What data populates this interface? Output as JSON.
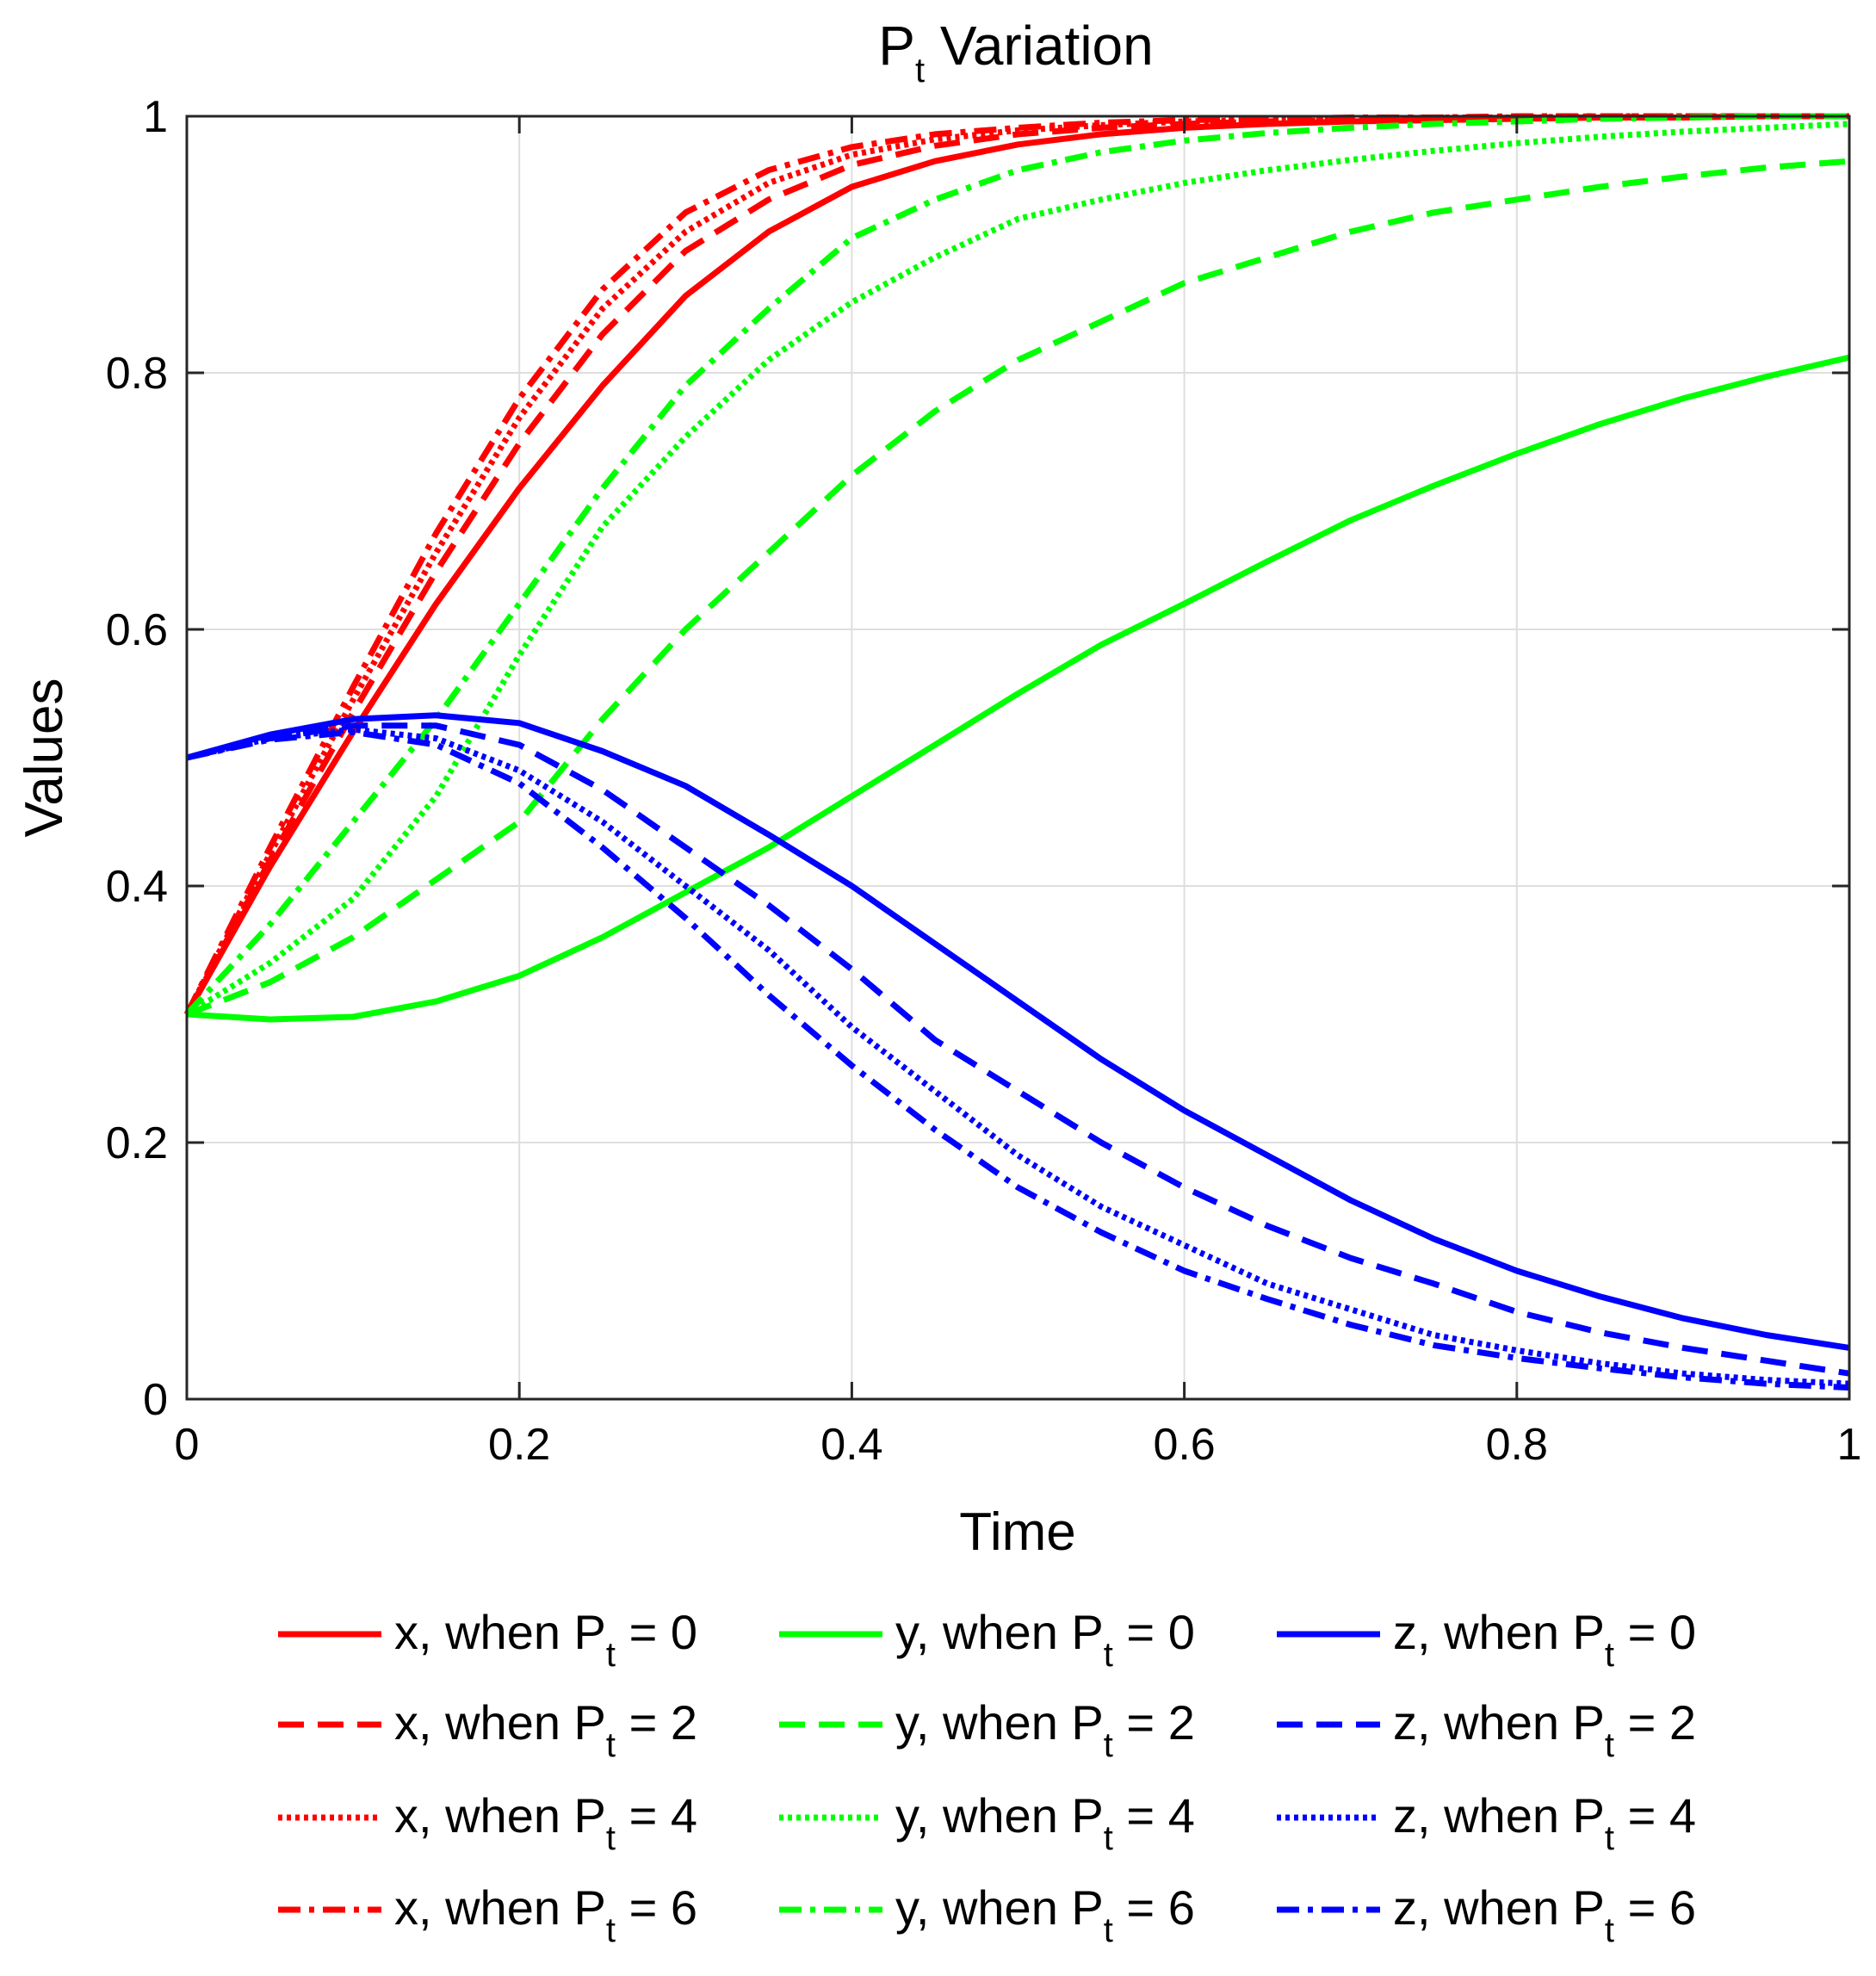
{
  "chart_data": {
    "type": "line",
    "title": "P",
    "title_sub": "t",
    "title_suffix": " Variation",
    "xlabel": "Time",
    "ylabel": "Values",
    "xlim": [
      0,
      1
    ],
    "ylim": [
      0,
      1
    ],
    "grid": true,
    "x_ticks": [
      0,
      0.2,
      0.4,
      0.6,
      0.8,
      1
    ],
    "y_ticks": [
      0,
      0.2,
      0.4,
      0.6,
      0.8,
      1
    ],
    "x_tick_labels": [
      "0",
      "0.2",
      "0.4",
      "0.6",
      "0.8",
      "1"
    ],
    "y_tick_labels": [
      "0",
      "0.2",
      "0.4",
      "0.6",
      "0.8",
      "1"
    ],
    "legend_position": "bottom, outside plot, 3 columns",
    "colors": {
      "x": "#ff0000",
      "y": "#00ff00",
      "z": "#0000ff"
    },
    "x": [
      0,
      0.05,
      0.1,
      0.15,
      0.2,
      0.25,
      0.3,
      0.35,
      0.4,
      0.45,
      0.5,
      0.55,
      0.6,
      0.65,
      0.7,
      0.75,
      0.8,
      0.85,
      0.9,
      0.95,
      1.0
    ],
    "series": [
      {
        "name": "x, when P",
        "sub": "t",
        "suffix": " = 0",
        "var": "x",
        "style": "solid",
        "values": [
          0.3,
          0.415,
          0.52,
          0.62,
          0.71,
          0.79,
          0.86,
          0.91,
          0.945,
          0.965,
          0.978,
          0.986,
          0.991,
          0.994,
          0.996,
          0.997,
          0.998,
          0.999,
          0.999,
          1.0,
          1.0
        ]
      },
      {
        "name": "x, when P",
        "sub": "t",
        "suffix": " = 2",
        "var": "x",
        "style": "dashed",
        "values": [
          0.3,
          0.42,
          0.535,
          0.645,
          0.745,
          0.83,
          0.895,
          0.935,
          0.962,
          0.977,
          0.986,
          0.991,
          0.994,
          0.996,
          0.997,
          0.998,
          0.999,
          0.999,
          1.0,
          1.0,
          1.0
        ]
      },
      {
        "name": "x, when P",
        "sub": "t",
        "suffix": " = 4",
        "var": "x",
        "style": "dotted",
        "values": [
          0.3,
          0.425,
          0.545,
          0.66,
          0.765,
          0.85,
          0.91,
          0.948,
          0.97,
          0.982,
          0.989,
          0.993,
          0.996,
          0.997,
          0.998,
          0.999,
          0.999,
          1.0,
          1.0,
          1.0,
          1.0
        ]
      },
      {
        "name": "x, when P",
        "sub": "t",
        "suffix": " = 6",
        "var": "x",
        "style": "dashdot",
        "values": [
          0.3,
          0.43,
          0.555,
          0.675,
          0.78,
          0.865,
          0.925,
          0.958,
          0.976,
          0.986,
          0.991,
          0.995,
          0.997,
          0.998,
          0.999,
          0.999,
          1.0,
          1.0,
          1.0,
          1.0,
          1.0
        ]
      },
      {
        "name": "y, when P",
        "sub": "t",
        "suffix": " = 0",
        "var": "y",
        "style": "solid",
        "values": [
          0.3,
          0.296,
          0.298,
          0.31,
          0.33,
          0.36,
          0.395,
          0.43,
          0.47,
          0.51,
          0.55,
          0.588,
          0.62,
          0.653,
          0.685,
          0.712,
          0.737,
          0.76,
          0.78,
          0.797,
          0.812
        ]
      },
      {
        "name": "y, when P",
        "sub": "t",
        "suffix": " = 2",
        "var": "y",
        "style": "dashed",
        "values": [
          0.3,
          0.325,
          0.36,
          0.405,
          0.45,
          0.53,
          0.6,
          0.66,
          0.72,
          0.77,
          0.81,
          0.84,
          0.87,
          0.89,
          0.91,
          0.925,
          0.935,
          0.945,
          0.953,
          0.96,
          0.965
        ]
      },
      {
        "name": "y, when P",
        "sub": "t",
        "suffix": " = 4",
        "var": "y",
        "style": "dotted",
        "values": [
          0.3,
          0.34,
          0.39,
          0.47,
          0.58,
          0.68,
          0.75,
          0.81,
          0.855,
          0.89,
          0.92,
          0.935,
          0.948,
          0.958,
          0.966,
          0.973,
          0.979,
          0.984,
          0.988,
          0.991,
          0.994
        ]
      },
      {
        "name": "y, when P",
        "sub": "t",
        "suffix": " = 6",
        "var": "y",
        "style": "dashdot",
        "values": [
          0.3,
          0.37,
          0.45,
          0.53,
          0.62,
          0.71,
          0.79,
          0.85,
          0.905,
          0.935,
          0.958,
          0.972,
          0.981,
          0.987,
          0.991,
          0.994,
          0.996,
          0.998,
          0.999,
          1.0,
          1.0
        ]
      },
      {
        "name": "z, when P",
        "sub": "t",
        "suffix": " = 0",
        "var": "z",
        "style": "solid",
        "values": [
          0.5,
          0.518,
          0.53,
          0.533,
          0.527,
          0.505,
          0.478,
          0.44,
          0.4,
          0.355,
          0.31,
          0.265,
          0.225,
          0.19,
          0.155,
          0.125,
          0.1,
          0.08,
          0.063,
          0.05,
          0.04
        ]
      },
      {
        "name": "z, when P",
        "sub": "t",
        "suffix": " = 2",
        "var": "z",
        "style": "dashed",
        "values": [
          0.5,
          0.515,
          0.525,
          0.525,
          0.51,
          0.475,
          0.43,
          0.385,
          0.335,
          0.28,
          0.24,
          0.2,
          0.165,
          0.135,
          0.11,
          0.09,
          0.068,
          0.052,
          0.04,
          0.03,
          0.02
        ]
      },
      {
        "name": "z, when P",
        "sub": "t",
        "suffix": " = 4",
        "var": "z",
        "style": "dotted",
        "values": [
          0.5,
          0.515,
          0.522,
          0.515,
          0.49,
          0.45,
          0.4,
          0.35,
          0.29,
          0.24,
          0.19,
          0.15,
          0.12,
          0.09,
          0.07,
          0.05,
          0.038,
          0.028,
          0.02,
          0.015,
          0.012
        ]
      },
      {
        "name": "z, when P",
        "sub": "t",
        "suffix": " = 6",
        "var": "z",
        "style": "dashdot",
        "values": [
          0.5,
          0.514,
          0.52,
          0.51,
          0.48,
          0.43,
          0.375,
          0.315,
          0.26,
          0.21,
          0.165,
          0.13,
          0.1,
          0.078,
          0.058,
          0.042,
          0.032,
          0.024,
          0.017,
          0.012,
          0.009
        ]
      }
    ]
  }
}
